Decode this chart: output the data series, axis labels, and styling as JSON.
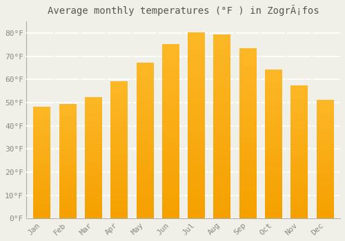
{
  "title": "Average monthly temperatures (°F ) in ZogrÃ¡fos",
  "months": [
    "Jan",
    "Feb",
    "Mar",
    "Apr",
    "May",
    "Jun",
    "Jul",
    "Aug",
    "Sep",
    "Oct",
    "Nov",
    "Dec"
  ],
  "values": [
    48,
    49,
    52,
    59,
    67,
    75,
    80,
    79,
    73,
    64,
    57,
    51
  ],
  "bar_color_top": "#FDB827",
  "bar_color_bottom": "#F5A000",
  "background_color": "#F0F0E8",
  "grid_color": "#FFFFFF",
  "text_color": "#888888",
  "spine_color": "#AAAAAA",
  "ylim": [
    0,
    85
  ],
  "yticks": [
    0,
    10,
    20,
    30,
    40,
    50,
    60,
    70,
    80
  ],
  "ytick_labels": [
    "0°F",
    "10°F",
    "20°F",
    "30°F",
    "40°F",
    "50°F",
    "60°F",
    "70°F",
    "80°F"
  ],
  "title_fontsize": 10,
  "tick_fontsize": 8,
  "bar_width": 0.65
}
